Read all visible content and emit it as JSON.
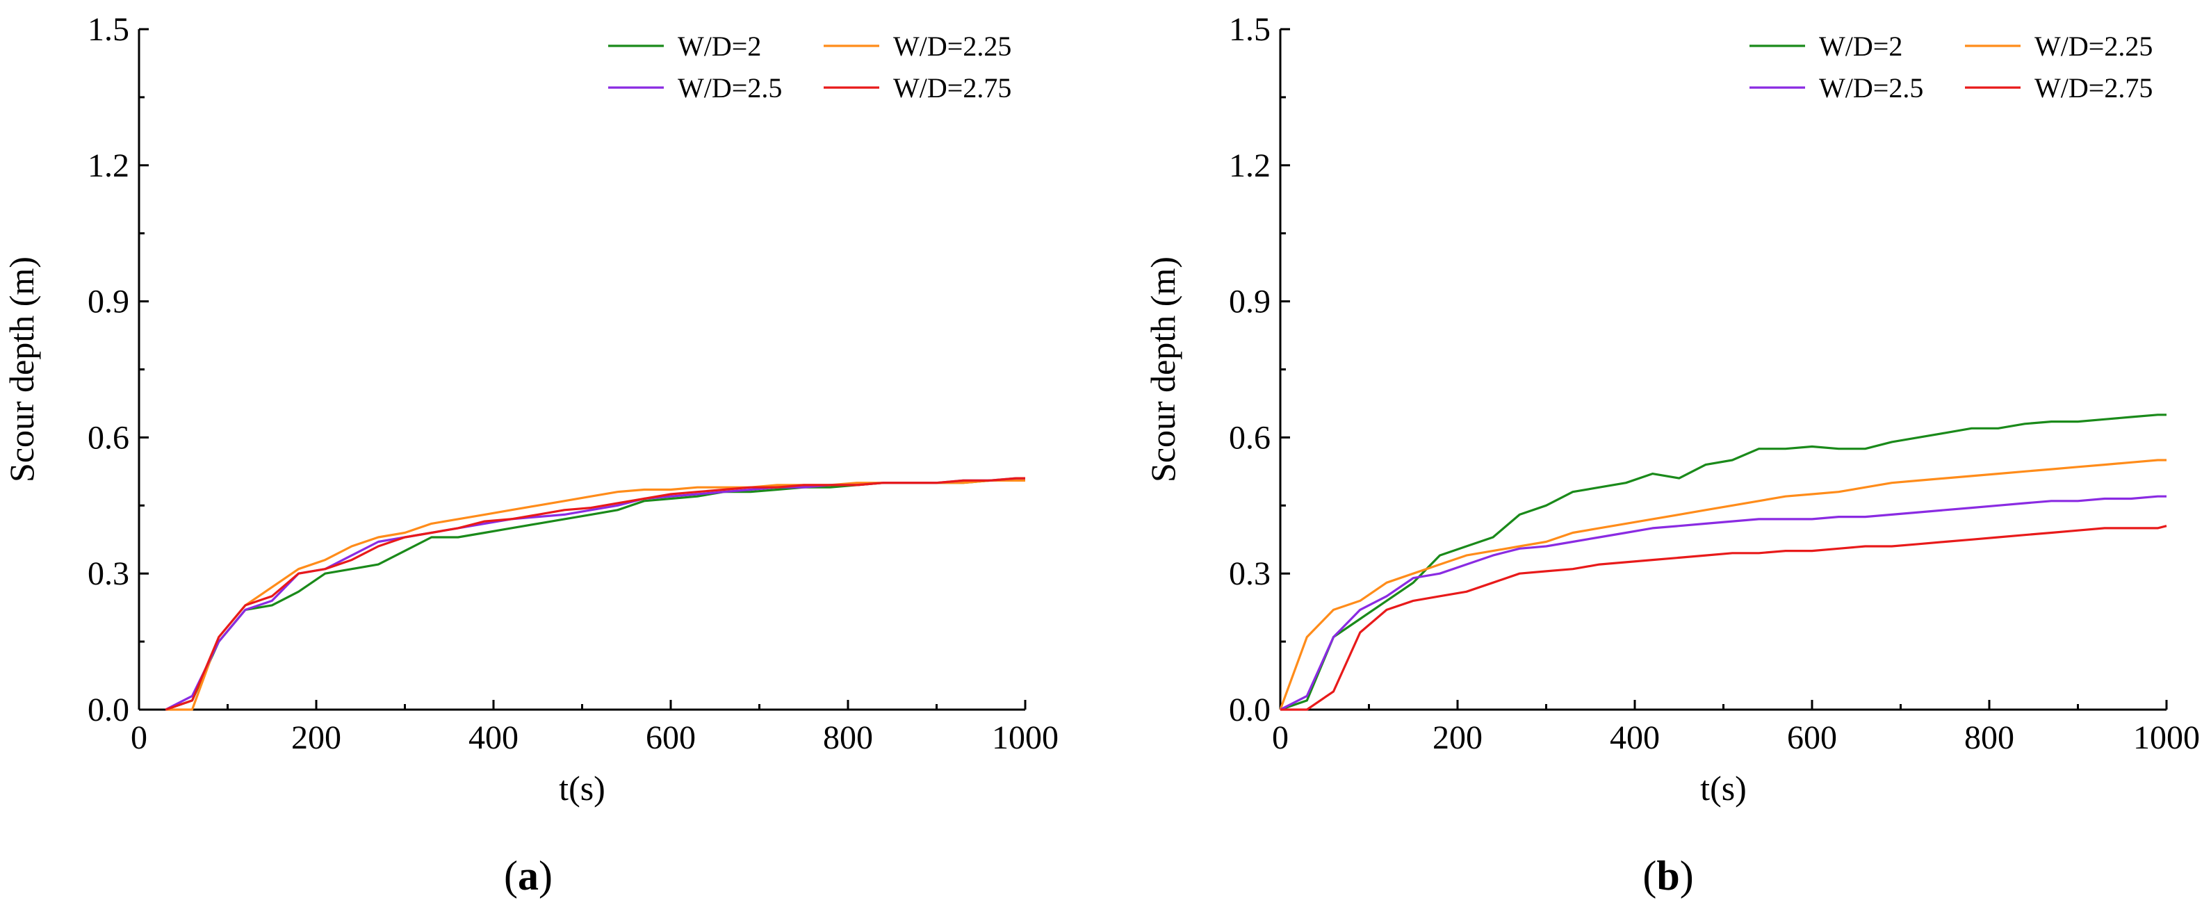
{
  "chart_data": [
    {
      "type": "line",
      "panel_label": "a",
      "xlabel": "t(s)",
      "ylabel": "Scour depth (m)",
      "xlim": [
        0,
        1000
      ],
      "ylim": [
        0,
        1.5
      ],
      "xticks": [
        0,
        200,
        400,
        600,
        800,
        1000
      ],
      "yticks": [
        0.0,
        0.3,
        0.6,
        0.9,
        1.2,
        1.5
      ],
      "xtick_labels": [
        "0",
        "200",
        "400",
        "600",
        "800",
        "1000"
      ],
      "ytick_labels": [
        "0.0",
        "0.3",
        "0.6",
        "0.9",
        "1.2",
        "1.5"
      ],
      "legend_position": "top-right",
      "series": [
        {
          "name": "W/D=2",
          "color": "#1a8a1a",
          "x": [
            30,
            60,
            90,
            120,
            150,
            180,
            210,
            240,
            270,
            300,
            330,
            360,
            390,
            420,
            450,
            480,
            510,
            540,
            570,
            600,
            630,
            660,
            690,
            720,
            750,
            780,
            810,
            840,
            870,
            900,
            930,
            960,
            990,
            1000
          ],
          "y": [
            0.0,
            0.02,
            0.15,
            0.22,
            0.23,
            0.26,
            0.3,
            0.31,
            0.32,
            0.35,
            0.38,
            0.38,
            0.39,
            0.4,
            0.41,
            0.42,
            0.43,
            0.44,
            0.46,
            0.465,
            0.47,
            0.48,
            0.48,
            0.485,
            0.49,
            0.49,
            0.495,
            0.5,
            0.5,
            0.5,
            0.5,
            0.505,
            0.505,
            0.505
          ]
        },
        {
          "name": "W/D=2.25",
          "color": "#ff8c1a",
          "x": [
            30,
            60,
            90,
            120,
            150,
            180,
            210,
            240,
            270,
            300,
            330,
            360,
            390,
            420,
            450,
            480,
            510,
            540,
            570,
            600,
            630,
            660,
            690,
            720,
            750,
            780,
            810,
            840,
            870,
            900,
            930,
            960,
            990,
            1000
          ],
          "y": [
            0.0,
            0.0,
            0.16,
            0.23,
            0.27,
            0.31,
            0.33,
            0.36,
            0.38,
            0.39,
            0.41,
            0.42,
            0.43,
            0.44,
            0.45,
            0.46,
            0.47,
            0.48,
            0.485,
            0.485,
            0.49,
            0.49,
            0.49,
            0.495,
            0.495,
            0.495,
            0.5,
            0.5,
            0.5,
            0.5,
            0.5,
            0.505,
            0.505,
            0.505
          ]
        },
        {
          "name": "W/D=2.5",
          "color": "#8a2be2",
          "x": [
            30,
            60,
            90,
            120,
            150,
            180,
            210,
            240,
            270,
            300,
            330,
            360,
            390,
            420,
            450,
            480,
            510,
            540,
            570,
            600,
            630,
            660,
            690,
            720,
            750,
            780,
            810,
            840,
            870,
            900,
            930,
            960,
            990,
            1000
          ],
          "y": [
            0.0,
            0.03,
            0.15,
            0.22,
            0.24,
            0.3,
            0.31,
            0.34,
            0.37,
            0.38,
            0.39,
            0.4,
            0.41,
            0.42,
            0.425,
            0.43,
            0.44,
            0.45,
            0.465,
            0.47,
            0.475,
            0.48,
            0.485,
            0.49,
            0.49,
            0.495,
            0.495,
            0.5,
            0.5,
            0.5,
            0.505,
            0.505,
            0.51,
            0.51
          ]
        },
        {
          "name": "W/D=2.75",
          "color": "#e81a1a",
          "x": [
            30,
            60,
            90,
            120,
            150,
            180,
            210,
            240,
            270,
            300,
            330,
            360,
            390,
            420,
            450,
            480,
            510,
            540,
            570,
            600,
            630,
            660,
            690,
            720,
            750,
            780,
            810,
            840,
            870,
            900,
            930,
            960,
            990,
            1000
          ],
          "y": [
            0.0,
            0.02,
            0.16,
            0.23,
            0.25,
            0.3,
            0.31,
            0.33,
            0.36,
            0.38,
            0.39,
            0.4,
            0.415,
            0.42,
            0.43,
            0.44,
            0.445,
            0.455,
            0.465,
            0.475,
            0.48,
            0.485,
            0.49,
            0.49,
            0.495,
            0.495,
            0.495,
            0.5,
            0.5,
            0.5,
            0.505,
            0.505,
            0.51,
            0.51
          ]
        }
      ]
    },
    {
      "type": "line",
      "panel_label": "b",
      "xlabel": "t(s)",
      "ylabel": "Scour depth (m)",
      "xlim": [
        0,
        1000
      ],
      "ylim": [
        0,
        1.5
      ],
      "xticks": [
        0,
        200,
        400,
        600,
        800,
        1000
      ],
      "yticks": [
        0.0,
        0.3,
        0.6,
        0.9,
        1.2,
        1.5
      ],
      "xtick_labels": [
        "0",
        "200",
        "400",
        "600",
        "800",
        "1000"
      ],
      "ytick_labels": [
        "0.0",
        "0.3",
        "0.6",
        "0.9",
        "1.2",
        "1.5"
      ],
      "legend_position": "top-right",
      "series": [
        {
          "name": "W/D=2",
          "color": "#1a8a1a",
          "x": [
            0,
            30,
            60,
            90,
            120,
            150,
            180,
            210,
            240,
            270,
            300,
            330,
            360,
            390,
            420,
            450,
            480,
            510,
            540,
            570,
            600,
            630,
            660,
            690,
            720,
            750,
            780,
            810,
            840,
            870,
            900,
            930,
            960,
            990,
            1000
          ],
          "y": [
            0.0,
            0.02,
            0.16,
            0.2,
            0.24,
            0.28,
            0.34,
            0.36,
            0.38,
            0.43,
            0.45,
            0.48,
            0.49,
            0.5,
            0.52,
            0.51,
            0.54,
            0.55,
            0.575,
            0.575,
            0.58,
            0.575,
            0.575,
            0.59,
            0.6,
            0.61,
            0.62,
            0.62,
            0.63,
            0.635,
            0.635,
            0.64,
            0.645,
            0.65,
            0.65
          ]
        },
        {
          "name": "W/D=2.25",
          "color": "#ff8c1a",
          "x": [
            0,
            30,
            60,
            90,
            120,
            150,
            180,
            210,
            240,
            270,
            300,
            330,
            360,
            390,
            420,
            450,
            480,
            510,
            540,
            570,
            600,
            630,
            660,
            690,
            720,
            750,
            780,
            810,
            840,
            870,
            900,
            930,
            960,
            990,
            1000
          ],
          "y": [
            0.0,
            0.16,
            0.22,
            0.24,
            0.28,
            0.3,
            0.32,
            0.34,
            0.35,
            0.36,
            0.37,
            0.39,
            0.4,
            0.41,
            0.42,
            0.43,
            0.44,
            0.45,
            0.46,
            0.47,
            0.475,
            0.48,
            0.49,
            0.5,
            0.505,
            0.51,
            0.515,
            0.52,
            0.525,
            0.53,
            0.535,
            0.54,
            0.545,
            0.55,
            0.55
          ]
        },
        {
          "name": "W/D=2.5",
          "color": "#8a2be2",
          "x": [
            0,
            30,
            60,
            90,
            120,
            150,
            180,
            210,
            240,
            270,
            300,
            330,
            360,
            390,
            420,
            450,
            480,
            510,
            540,
            570,
            600,
            630,
            660,
            690,
            720,
            750,
            780,
            810,
            840,
            870,
            900,
            930,
            960,
            990,
            1000
          ],
          "y": [
            0.0,
            0.03,
            0.16,
            0.22,
            0.25,
            0.29,
            0.3,
            0.32,
            0.34,
            0.355,
            0.36,
            0.37,
            0.38,
            0.39,
            0.4,
            0.405,
            0.41,
            0.415,
            0.42,
            0.42,
            0.42,
            0.425,
            0.425,
            0.43,
            0.435,
            0.44,
            0.445,
            0.45,
            0.455,
            0.46,
            0.46,
            0.465,
            0.465,
            0.47,
            0.47
          ]
        },
        {
          "name": "W/D=2.75",
          "color": "#e81a1a",
          "x": [
            0,
            30,
            60,
            90,
            120,
            150,
            180,
            210,
            240,
            270,
            300,
            330,
            360,
            390,
            420,
            450,
            480,
            510,
            540,
            570,
            600,
            630,
            660,
            690,
            720,
            750,
            780,
            810,
            840,
            870,
            900,
            930,
            960,
            990,
            1000
          ],
          "y": [
            0.0,
            0.0,
            0.04,
            0.17,
            0.22,
            0.24,
            0.25,
            0.26,
            0.28,
            0.3,
            0.305,
            0.31,
            0.32,
            0.325,
            0.33,
            0.335,
            0.34,
            0.345,
            0.345,
            0.35,
            0.35,
            0.355,
            0.36,
            0.36,
            0.365,
            0.37,
            0.375,
            0.38,
            0.385,
            0.39,
            0.395,
            0.4,
            0.4,
            0.4,
            0.405
          ]
        }
      ]
    }
  ]
}
